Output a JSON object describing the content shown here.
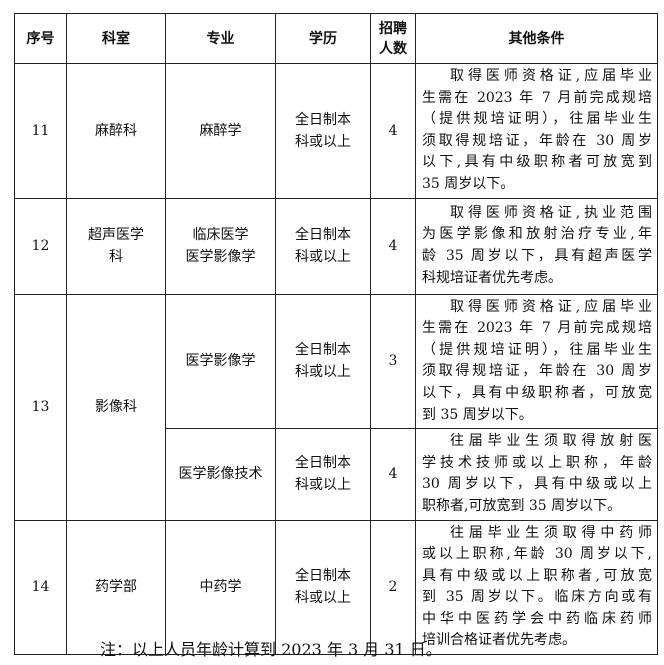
{
  "headers": [
    "序号",
    "科室",
    "专业",
    "学历",
    "招聘\n人数",
    "其他条件"
  ],
  "rows": [
    {
      "no": "11",
      "dept": "麻醉科",
      "major": "麻醉学",
      "edu": "全日制本\n科或以上",
      "count": "4",
      "cond": [
        "取得医师资格证,应届毕业",
        "生需在 2023 年 7 月前完成规培",
        "（提供规培证明），往届毕业生",
        "须取得规培证，年龄在 30 周岁",
        "以下,具有中级职称者可放宽到",
        "35 周岁以下。"
      ]
    },
    {
      "no": "12",
      "dept": "超声医学\n科",
      "major": "临床医学\n医学影像学",
      "edu": "全日制本\n科或以上",
      "count": "4",
      "cond": [
        "取得医师资格证,执业范围",
        "为医学影像和放射治疗专业,年",
        "龄 35 周岁以下，具有超声医学",
        "科规培证者优先考虑。"
      ]
    },
    {
      "no": "13",
      "dept": "影像科",
      "major": "医学影像学",
      "edu": "全日制本\n科或以上",
      "count": "3",
      "cond": [
        "取得医师资格证,应届毕业",
        "生需在 2023 年 7 月前完成规培",
        "（提供规培证明），往届毕业生",
        "须取得规培证，年龄在 30 周岁",
        "以下，具有中级职称者，可放宽",
        "到 35 周岁以下。"
      ]
    },
    {
      "major": "医学影像技术",
      "edu": "全日制本\n科或以上",
      "count": "4",
      "cond": [
        "往届毕业生须取得放射医",
        "学技术技师或以上职称，年龄",
        "30 周岁以下，具有中级或以上",
        "职称者,可放宽到 35 周岁以下。"
      ]
    },
    {
      "no": "14",
      "dept": "药学部",
      "major": "中药学",
      "edu": "全日制本\n科或以上",
      "count": "2",
      "cond": [
        "往届毕业生须取得中药师",
        "或以上职称,年龄 30 周岁以下,",
        "具有中级或以上职称者,可放宽",
        "到 35 周岁以下。临床方向或有",
        "中华中医药学会中药临床药师",
        "培训合格证者优先考虑。"
      ]
    }
  ],
  "note": "注：以上人员年龄计算到 2023 年 3 月 31 日。"
}
